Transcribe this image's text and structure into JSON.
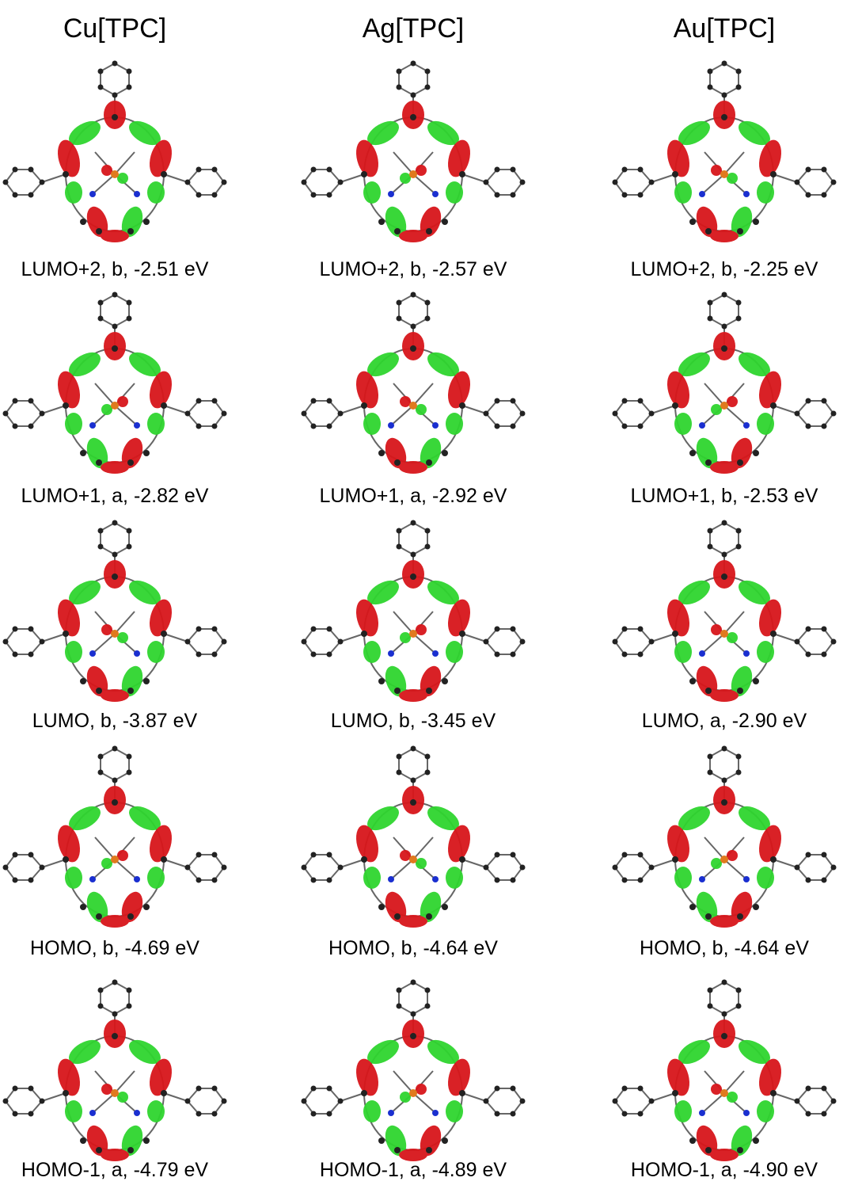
{
  "columns": [
    {
      "title": "Cu[TPC]",
      "orbitals": [
        "LUMO+2, b, -2.51 eV",
        "LUMO+1, a, -2.82 eV",
        "LUMO, b, -3.87 eV",
        "HOMO, b, -4.69 eV",
        "HOMO-1, a, -4.79 eV"
      ]
    },
    {
      "title": "Ag[TPC]",
      "orbitals": [
        "LUMO+2, b, -2.57 eV",
        "LUMO+1, a, -2.92 eV",
        "LUMO, b, -3.45 eV",
        "HOMO, b, -4.64 eV",
        "HOMO-1, a, -4.89 eV"
      ]
    },
    {
      "title": "Au[TPC]",
      "orbitals": [
        "LUMO+2, b, -2.25 eV",
        "LUMO+1, b, -2.53 eV",
        "LUMO, a, -2.90 eV",
        "HOMO, b, -4.64 eV",
        "HOMO-1, a, -4.90 eV"
      ]
    }
  ]
}
